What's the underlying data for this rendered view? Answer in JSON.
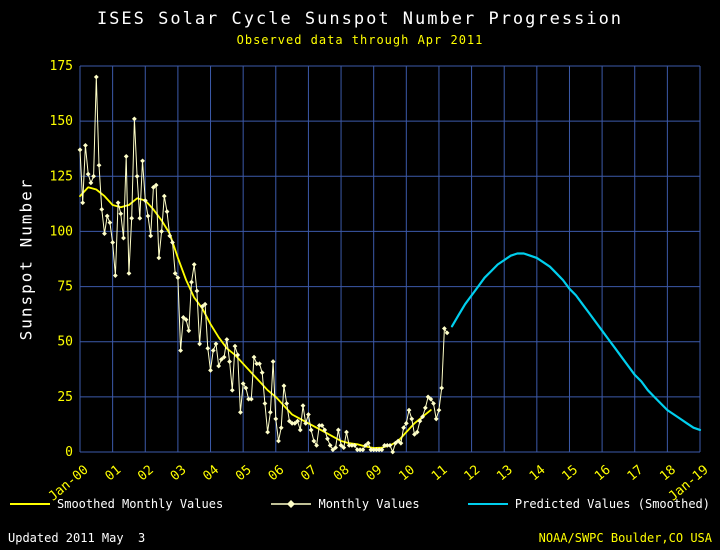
{
  "title": "ISES Solar Cycle Sunspot Number Progression",
  "subtitle": "Observed data through Apr 2011",
  "footer": {
    "updated": "Updated 2011 May  3",
    "credit": "NOAA/SWPC Boulder,CO USA"
  },
  "colors": {
    "background": "#000000",
    "grid": "#3c5aaa",
    "tick_label": "#ffff00",
    "title": "#ffffff",
    "subtitle": "#ffff00",
    "smoothed": "#ffff00",
    "monthly": "#ffffc8",
    "predicted": "#00cfee"
  },
  "legend": [
    {
      "label": "Smoothed Monthly Values",
      "color": "#ffff00",
      "marker": false
    },
    {
      "label": "Monthly Values",
      "color": "#ffffc8",
      "marker": true
    },
    {
      "label": "Predicted Values (Smoothed)",
      "color": "#00cfee",
      "marker": false
    }
  ],
  "chart_data": {
    "type": "line",
    "title": "ISES Solar Cycle Sunspot Number Progression",
    "subtitle": "Observed data through Apr 2011",
    "xlabel": "",
    "ylabel": "Sunspot Number",
    "xlim": [
      2000,
      2019
    ],
    "ylim": [
      0,
      175
    ],
    "grid": true,
    "legend_position": "bottom",
    "yticks": [
      0,
      25,
      50,
      75,
      100,
      125,
      150,
      175
    ],
    "xticks": [
      {
        "x": 2000,
        "label": "Jan-00"
      },
      {
        "x": 2001,
        "label": "01"
      },
      {
        "x": 2002,
        "label": "02"
      },
      {
        "x": 2003,
        "label": "03"
      },
      {
        "x": 2004,
        "label": "04"
      },
      {
        "x": 2005,
        "label": "05"
      },
      {
        "x": 2006,
        "label": "06"
      },
      {
        "x": 2007,
        "label": "07"
      },
      {
        "x": 2008,
        "label": "08"
      },
      {
        "x": 2009,
        "label": "09"
      },
      {
        "x": 2010,
        "label": "10"
      },
      {
        "x": 2011,
        "label": "11"
      },
      {
        "x": 2012,
        "label": "12"
      },
      {
        "x": 2013,
        "label": "13"
      },
      {
        "x": 2014,
        "label": "14"
      },
      {
        "x": 2015,
        "label": "15"
      },
      {
        "x": 2016,
        "label": "16"
      },
      {
        "x": 2017,
        "label": "17"
      },
      {
        "x": 2018,
        "label": "18"
      },
      {
        "x": 2019,
        "label": "Jan-19"
      }
    ],
    "series": [
      {
        "name": "Smoothed Monthly Values",
        "color": "#ffff00",
        "width": 1.8,
        "marker": false,
        "x_start": 2000.0,
        "x_step": 0.25,
        "y": [
          116,
          120,
          119,
          116,
          112,
          111,
          112,
          115,
          114,
          110,
          105,
          99,
          88,
          78,
          70,
          65,
          58,
          52,
          47,
          44,
          40,
          36,
          32,
          28,
          25,
          21,
          17,
          15,
          13,
          11,
          9,
          7,
          5,
          4,
          3.5,
          2.5,
          1.8,
          2,
          3,
          5,
          9,
          13,
          16,
          19
        ]
      },
      {
        "name": "Monthly Values",
        "color": "#ffffc8",
        "width": 1,
        "marker": true,
        "x_start": 2000.0,
        "x_step": 0.0833333,
        "y": [
          137,
          113,
          139,
          126,
          122,
          125,
          170,
          130,
          110,
          99,
          107,
          104,
          95,
          80,
          113,
          108,
          97,
          134,
          81,
          106,
          151,
          125,
          106,
          132,
          114,
          107,
          98,
          120,
          121,
          88,
          100,
          116,
          109,
          98,
          95,
          81,
          79,
          46,
          61,
          60,
          55,
          77,
          85,
          73,
          49,
          66,
          67,
          47,
          37,
          46,
          49,
          39,
          42,
          43,
          51,
          41,
          28,
          48,
          44,
          18,
          31,
          29,
          24,
          24,
          43,
          40,
          40,
          36,
          22,
          9,
          18,
          41,
          15,
          5,
          11,
          30,
          22,
          14,
          13,
          13,
          14,
          10,
          21,
          13,
          17,
          10,
          5,
          3,
          12,
          12,
          10,
          6,
          3,
          1,
          2,
          10,
          3,
          2,
          9,
          3,
          3,
          3,
          1,
          1,
          1,
          3,
          4,
          1,
          1,
          1,
          1,
          1,
          3,
          3,
          3,
          0,
          4,
          5,
          4,
          11,
          13,
          19,
          15,
          8,
          9,
          14,
          16,
          20,
          25,
          24,
          22,
          15,
          19,
          29,
          56,
          54
        ]
      },
      {
        "name": "Predicted Values (Smoothed)",
        "color": "#00cfee",
        "width": 2.2,
        "marker": false,
        "x_start": 2011.4,
        "x_step": 0.2,
        "y": [
          57,
          62,
          67,
          71,
          75,
          79,
          82,
          85,
          87,
          89,
          90,
          90,
          89,
          88,
          86,
          84,
          81,
          78,
          74,
          71,
          67,
          63,
          59,
          55,
          51,
          47,
          43,
          39,
          35,
          32,
          28,
          25,
          22,
          19,
          17,
          15,
          13,
          11,
          10
        ]
      }
    ]
  }
}
